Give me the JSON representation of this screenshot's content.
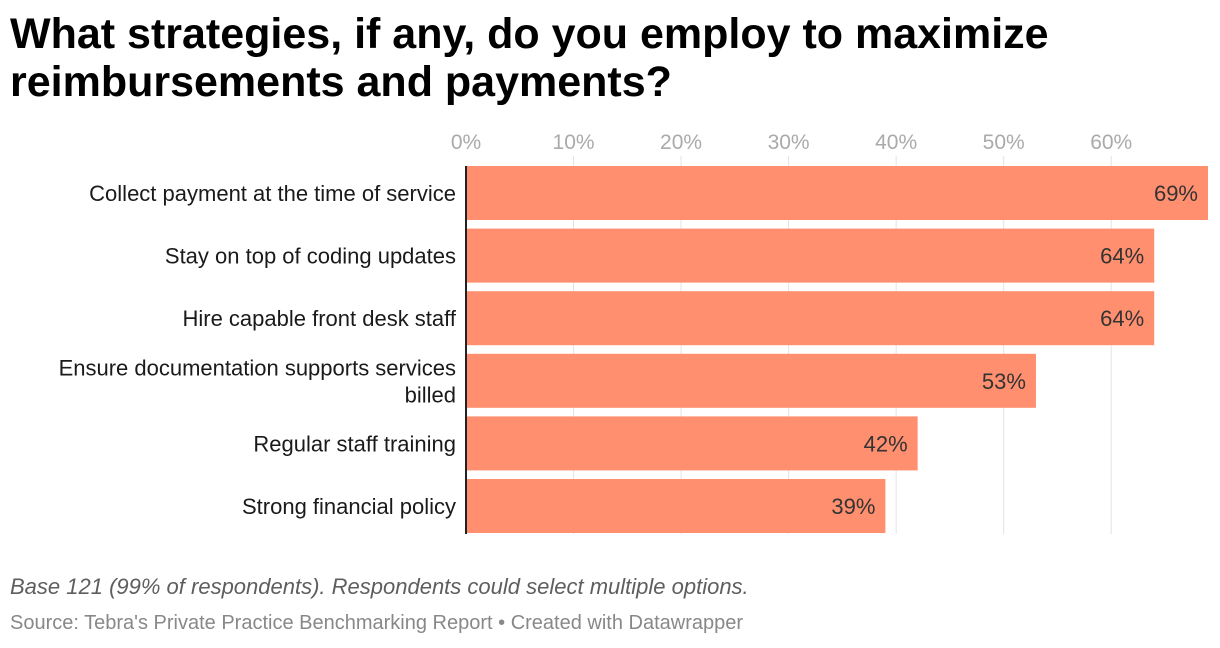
{
  "title": "What strategies, if any, do you employ to maximize reimbursements and payments?",
  "notes": "Base 121 (99% of respondents). Respondents could select multiple options.",
  "source": "Source: Tebra's Private Practice Benchmarking Report",
  "separator": "•",
  "credit": "Created with Datawrapper",
  "colors": {
    "bar": "#ff8f6f",
    "grid": "#e3e3e3",
    "axis": "#222222",
    "tick_text": "#aaaaaa",
    "label_text": "#1a1a1a",
    "value_text": "#333333"
  },
  "chart_data": {
    "type": "bar",
    "orientation": "horizontal",
    "categories": [
      [
        "Collect payment at the time of service"
      ],
      [
        "Stay on top of coding updates"
      ],
      [
        "Hire capable front desk staff"
      ],
      [
        "Ensure documentation supports services",
        "billed"
      ],
      [
        "Regular staff training"
      ],
      [
        "Strong financial policy"
      ]
    ],
    "values": [
      69,
      64,
      64,
      53,
      42,
      39
    ],
    "value_labels": [
      "69%",
      "64%",
      "64%",
      "53%",
      "42%",
      "39%"
    ],
    "xticks": [
      0,
      10,
      20,
      30,
      40,
      50,
      60
    ],
    "xtick_labels": [
      "0%",
      "10%",
      "20%",
      "30%",
      "40%",
      "50%",
      "60%"
    ],
    "xlim": [
      0,
      69
    ],
    "grid": true
  }
}
